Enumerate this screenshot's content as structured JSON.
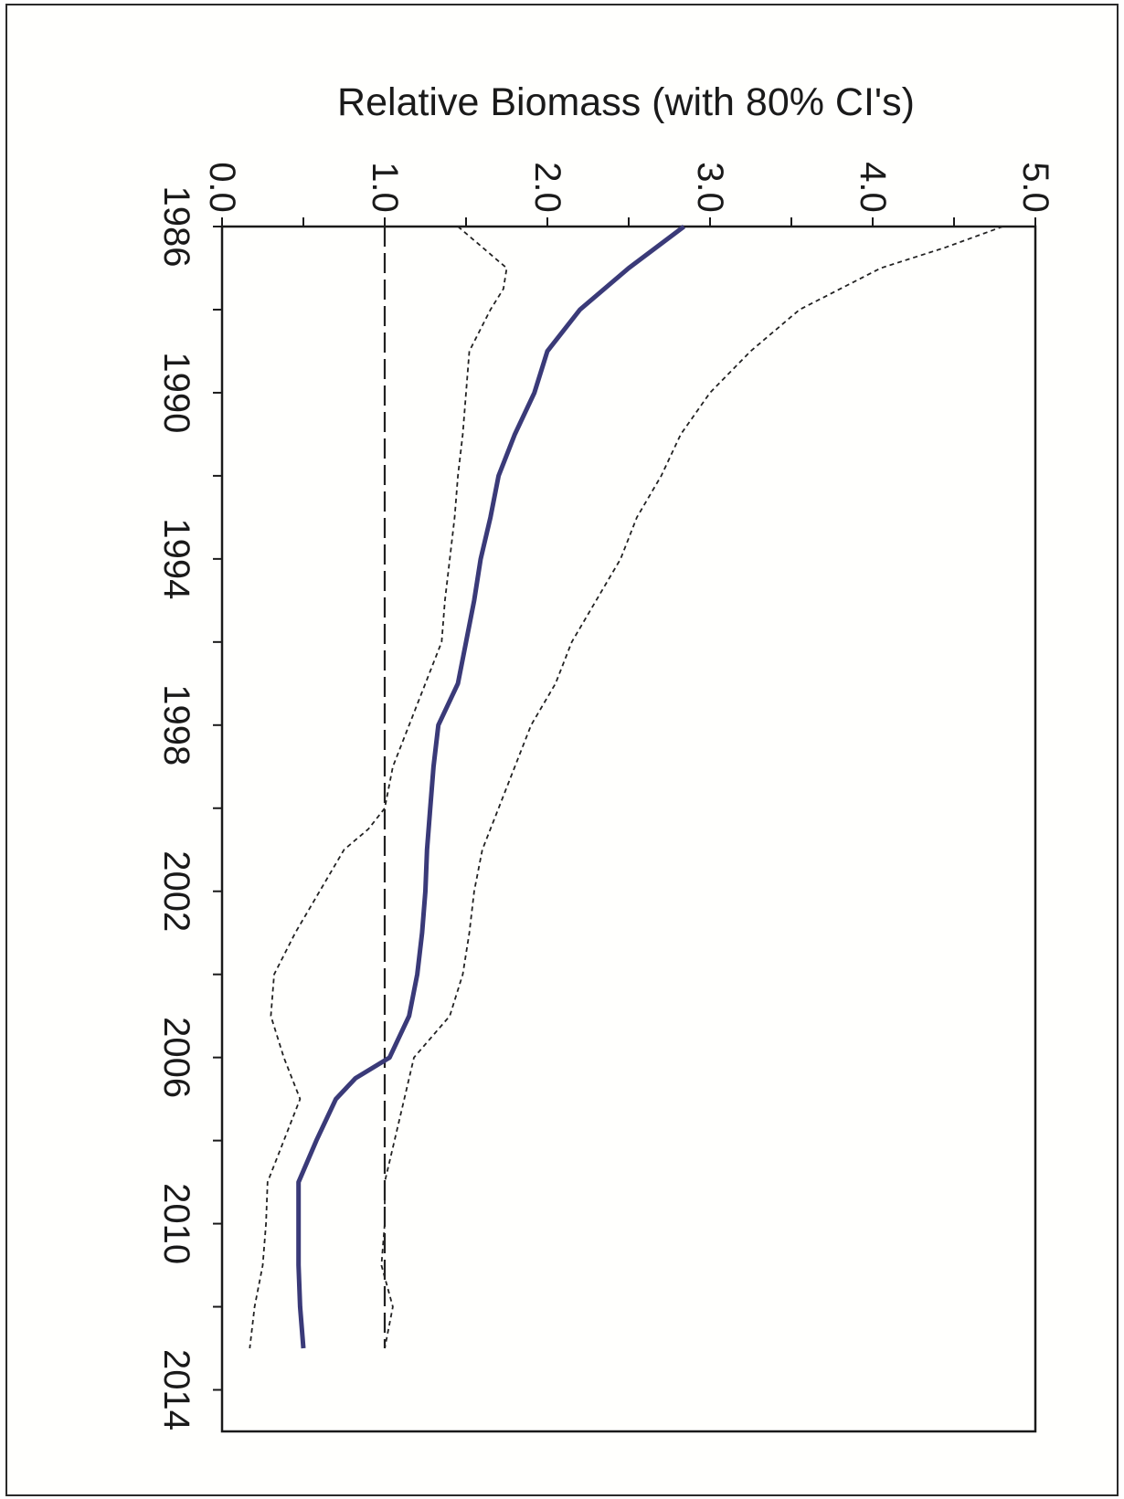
{
  "chart_data": {
    "type": "line",
    "orientation": "rotated-90-clockwise",
    "title": "",
    "ylabel": "Relative Biomass (with 80% CI's)",
    "xlabel": "",
    "xlim": [
      1986,
      2015
    ],
    "ylim": [
      0.0,
      5.0
    ],
    "x_ticks": [
      1986,
      1990,
      1994,
      1998,
      2002,
      2006,
      2010,
      2014
    ],
    "y_ticks": [
      "0.0",
      "1.0",
      "2.0",
      "3.0",
      "4.0",
      "5.0"
    ],
    "reference_line": {
      "y": 1.0,
      "style": "dashed"
    },
    "grid": false,
    "legend": "none",
    "colors": {
      "estimate": "#3a3a78",
      "bounds": "#222222",
      "reference": "#222222"
    },
    "series": [
      {
        "role": "estimate",
        "x": [
          1986,
          1987,
          1988,
          1989,
          1990,
          1991,
          1992,
          1993,
          1994,
          1995,
          1996,
          1997,
          1998,
          1999,
          2000,
          2001,
          2002,
          2003,
          2004,
          2005,
          2006,
          2006.5,
          2007,
          2008,
          2009,
          2010,
          2011,
          2012,
          2013
        ],
        "y": [
          2.84,
          2.5,
          2.2,
          2.0,
          1.92,
          1.8,
          1.7,
          1.65,
          1.59,
          1.55,
          1.5,
          1.45,
          1.33,
          1.3,
          1.28,
          1.26,
          1.25,
          1.23,
          1.2,
          1.15,
          1.03,
          0.82,
          0.7,
          0.58,
          0.47,
          0.47,
          0.47,
          0.48,
          0.5
        ]
      },
      {
        "role": "upper_80",
        "x": [
          1986,
          1986.5,
          1987,
          1988,
          1989,
          1990,
          1991,
          1992,
          1993,
          1994,
          1995,
          1996,
          1997,
          1998,
          1999,
          2000,
          2001,
          2002,
          2003,
          2004,
          2005,
          2006,
          2007,
          2008,
          2009,
          2010,
          2011,
          2012,
          2013
        ],
        "y": [
          4.8,
          4.45,
          4.05,
          3.55,
          3.25,
          3.0,
          2.82,
          2.7,
          2.55,
          2.45,
          2.3,
          2.15,
          2.05,
          1.9,
          1.8,
          1.7,
          1.6,
          1.55,
          1.52,
          1.48,
          1.4,
          1.18,
          1.12,
          1.06,
          1.0,
          1.0,
          0.98,
          1.05,
          1.0
        ]
      },
      {
        "role": "lower_80",
        "x": [
          1986,
          1986.5,
          1987,
          1987.5,
          1988,
          1989,
          1990,
          1991,
          1992,
          1993,
          1994,
          1995,
          1996,
          1997,
          1998,
          1999,
          2000,
          2000.5,
          2001,
          2002,
          2003,
          2004,
          2005,
          2006,
          2007,
          2008,
          2009,
          2010,
          2011,
          2012,
          2013
        ],
        "y": [
          1.45,
          1.6,
          1.75,
          1.73,
          1.65,
          1.52,
          1.5,
          1.48,
          1.45,
          1.43,
          1.4,
          1.37,
          1.35,
          1.25,
          1.15,
          1.05,
          1.0,
          0.9,
          0.75,
          0.6,
          0.45,
          0.32,
          0.3,
          0.38,
          0.48,
          0.38,
          0.28,
          0.27,
          0.25,
          0.2,
          0.17
        ]
      }
    ]
  }
}
